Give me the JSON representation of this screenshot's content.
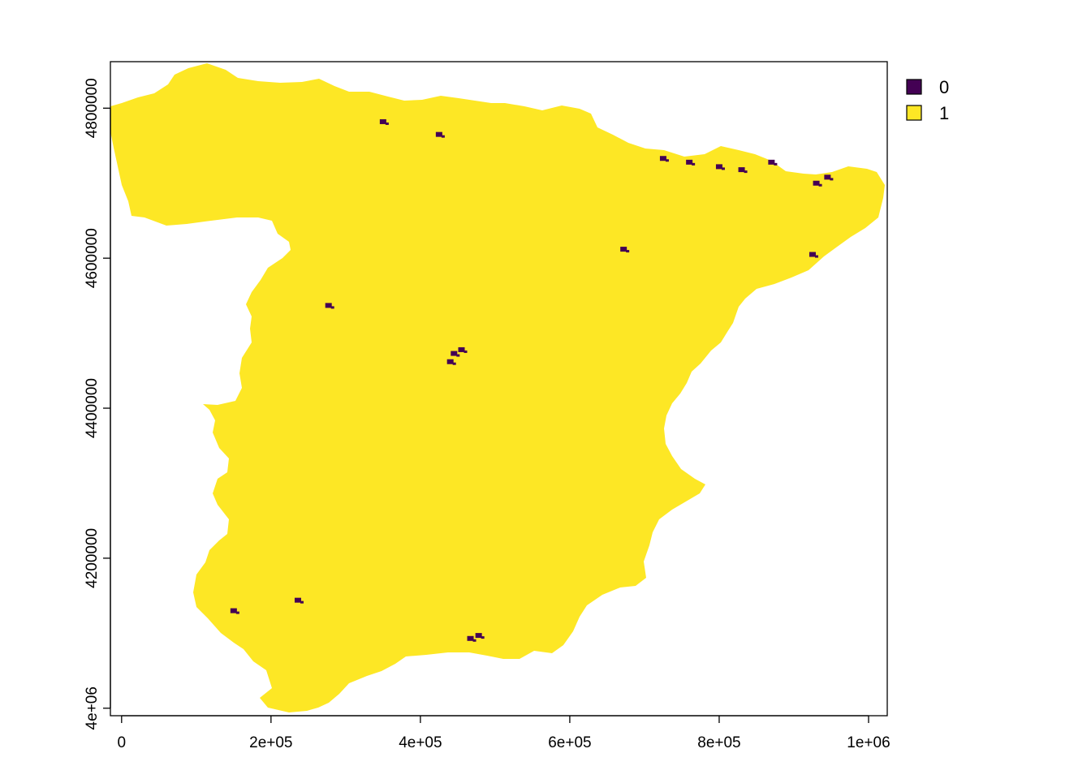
{
  "map": {
    "type": "raster",
    "colors": {
      "0": "#440154",
      "1": "#fde725"
    },
    "x_ticks": [
      {
        "value": 0,
        "label": "0"
      },
      {
        "value": 200000,
        "label": "2e+05"
      },
      {
        "value": 400000,
        "label": "4e+05"
      },
      {
        "value": 600000,
        "label": "6e+05"
      },
      {
        "value": 800000,
        "label": "8e+05"
      },
      {
        "value": 1000000,
        "label": "1e+06"
      }
    ],
    "y_ticks": [
      {
        "value": 4000000,
        "label": "4e+06"
      },
      {
        "value": 4200000,
        "label": "4200000"
      },
      {
        "value": 4400000,
        "label": "4400000"
      },
      {
        "value": 4600000,
        "label": "4600000"
      },
      {
        "value": 4800000,
        "label": "4800000"
      }
    ],
    "xlim": [
      -15000,
      1025000
    ],
    "ylim": [
      3990000,
      4862000
    ],
    "legend": {
      "placement": "right",
      "entries": [
        {
          "label": "0",
          "color": "#440154"
        },
        {
          "label": "1",
          "color": "#fde725"
        }
      ]
    },
    "class_0_patches": [
      {
        "x": 350000,
        "y": 4782000
      },
      {
        "x": 425000,
        "y": 4765000
      },
      {
        "x": 725000,
        "y": 4733000
      },
      {
        "x": 760000,
        "y": 4728000
      },
      {
        "x": 800000,
        "y": 4722000
      },
      {
        "x": 830000,
        "y": 4718000
      },
      {
        "x": 870000,
        "y": 4728000
      },
      {
        "x": 930000,
        "y": 4700000
      },
      {
        "x": 945000,
        "y": 4708000
      },
      {
        "x": 925000,
        "y": 4605000
      },
      {
        "x": 672000,
        "y": 4612000
      },
      {
        "x": 277000,
        "y": 4537000
      },
      {
        "x": 445000,
        "y": 4473000
      },
      {
        "x": 455000,
        "y": 4478000
      },
      {
        "x": 440000,
        "y": 4462000
      },
      {
        "x": 467000,
        "y": 4093000
      },
      {
        "x": 478000,
        "y": 4097000
      },
      {
        "x": 236000,
        "y": 4144000
      },
      {
        "x": 150000,
        "y": 4130000
      }
    ]
  }
}
